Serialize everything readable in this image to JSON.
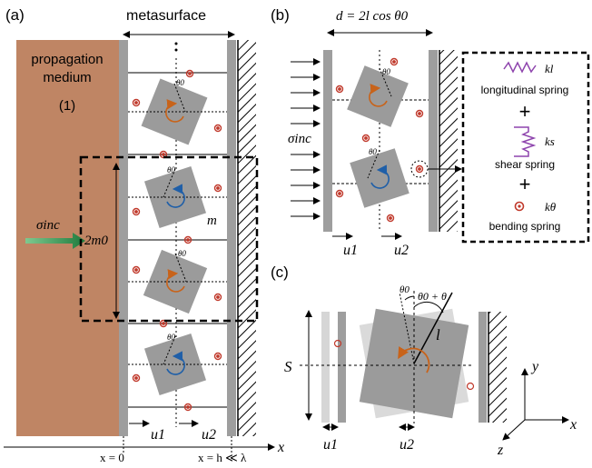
{
  "panel_a": {
    "label": "(a)",
    "metasurface": "metasurface",
    "medium_line1": "propagation",
    "medium_line2": "medium",
    "medium_index": "(1)",
    "sigma_inc": "σinc",
    "two_m0": "2m0",
    "mass": "m",
    "theta_label": "θ0",
    "u1": "u1",
    "u2": "u2",
    "x_axis": "x",
    "x_zero": "x = 0",
    "x_h": "x = h ≪ λ",
    "colors": {
      "medium": "#bf8564",
      "block": "#9b9b9b",
      "wall": "#9e9e9e",
      "arrow_orange": "#c8631a",
      "arrow_blue": "#1f5fa8",
      "spring": "#c0392b",
      "inc_arrow": "#2e8b57"
    }
  },
  "panel_b": {
    "label": "(b)",
    "d_eq": "d = 2l cos θ0",
    "sigma_inc": "σinc",
    "u1": "u1",
    "u2": "u2",
    "legend": {
      "kl": "kl",
      "long_spring": "longitudinal spring",
      "ks": "ks",
      "shear_spring": "shear spring",
      "ktheta": "kθ",
      "bending_spring": "bending spring",
      "plus": "+"
    }
  },
  "panel_c": {
    "label": "(c)",
    "S": "S",
    "l": "l",
    "theta0": "θ0",
    "theta0_plus": "θ0 + θ",
    "u1": "u1",
    "u2": "u2",
    "y": "y",
    "x": "x",
    "z": "z"
  }
}
